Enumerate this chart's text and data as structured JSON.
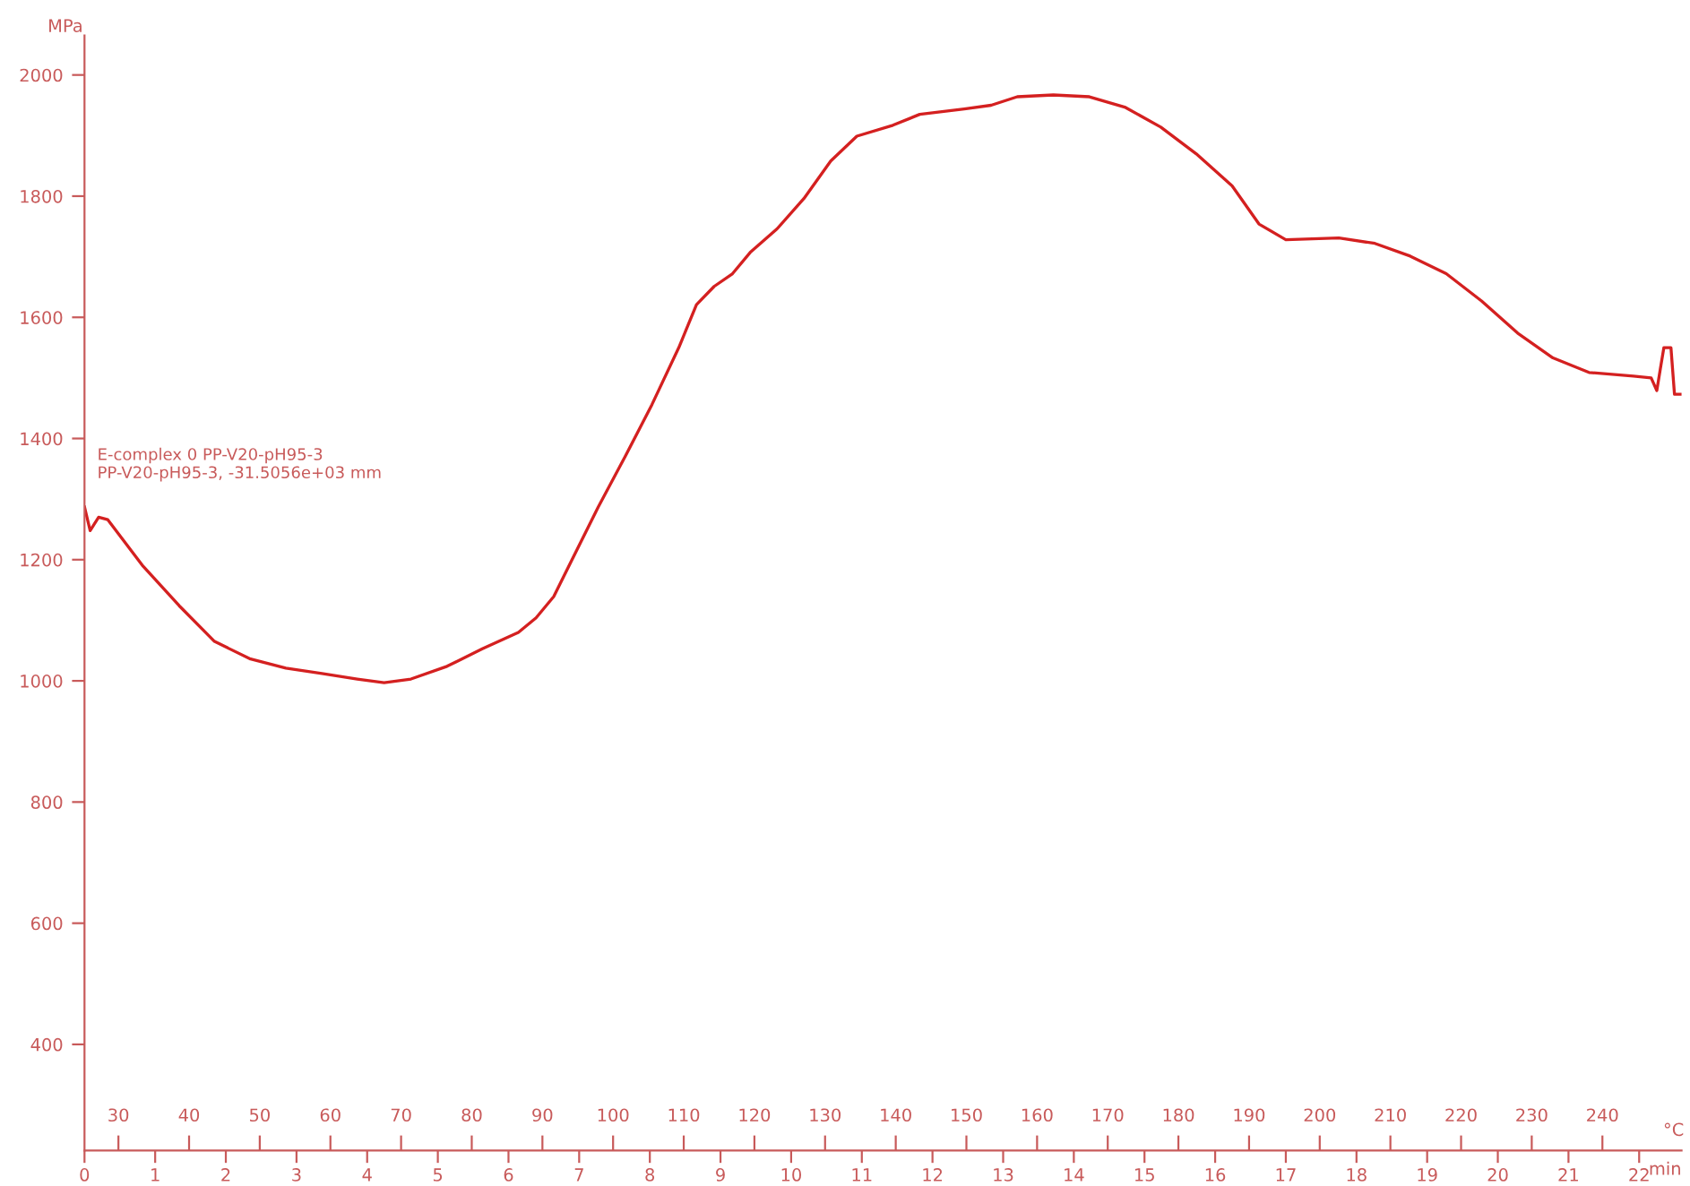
{
  "chart_data": {
    "type": "line",
    "ylabel": "MPa",
    "xlabel": "min",
    "x2label": "°C",
    "annotations": [
      "E-complex 0 PP-V20-pH95-3\nPP-V20-pH95-3, -31.5056e+03 mm"
    ],
    "x": [
      0,
      0.08,
      0.2,
      0.33,
      0.83,
      1.34,
      1.84,
      2.35,
      2.85,
      3.36,
      3.86,
      4.24,
      4.62,
      5.13,
      5.63,
      6.14,
      6.39,
      6.64,
      6.89,
      7.27,
      7.65,
      8.03,
      8.41,
      8.66,
      8.91,
      9.17,
      9.42,
      9.8,
      10.18,
      10.56,
      10.93,
      11.44,
      11.82,
      12.45,
      12.83,
      13.2,
      13.71,
      14.22,
      14.72,
      15.23,
      15.73,
      16.24,
      16.62,
      17,
      17.75,
      18.26,
      18.76,
      19.27,
      19.77,
      20.28,
      20.78,
      21.29,
      21.92,
      22.17,
      22.25,
      22.3,
      22.35,
      22.45,
      22.5,
      22.6
    ],
    "series": [
      {
        "color": "#d42020",
        "values": [
          1287,
          1248,
          1270,
          1266,
          1189,
          1124,
          1065,
          1036,
          1021,
          1012,
          1003,
          997,
          1003,
          1024,
          1053,
          1080,
          1104,
          1139,
          1198,
          1287,
          1370,
          1456,
          1550,
          1621,
          1651,
          1672,
          1707,
          1746,
          1796,
          1858,
          1899,
          1917,
          1935,
          1944,
          1950,
          1964,
          1967,
          1964,
          1947,
          1914,
          1870,
          1817,
          1754,
          1728,
          1731,
          1722,
          1701,
          1672,
          1627,
          1574,
          1533,
          1509,
          1503,
          1500,
          1479,
          1515,
          1550,
          1550,
          1473,
          1473
        ]
      }
    ],
    "xlim": [
      0,
      22.6
    ],
    "xticks": [
      0,
      1,
      2,
      3,
      4,
      5,
      6,
      7,
      8,
      9,
      10,
      11,
      12,
      13,
      14,
      15,
      16,
      17,
      18,
      19,
      20,
      21,
      22
    ],
    "x2lim": [
      25.2,
      251.2
    ],
    "x2ticks": [
      30,
      40,
      50,
      60,
      70,
      80,
      90,
      100,
      110,
      120,
      130,
      140,
      150,
      160,
      170,
      180,
      190,
      200,
      210,
      220,
      230,
      240
    ],
    "ylim": [
      225,
      2065
    ],
    "yticks": [
      400,
      600,
      800,
      1000,
      1200,
      1400,
      1600,
      1800,
      2000
    ],
    "grid": false,
    "legend": false,
    "marker": "none",
    "line_style": "solid"
  }
}
